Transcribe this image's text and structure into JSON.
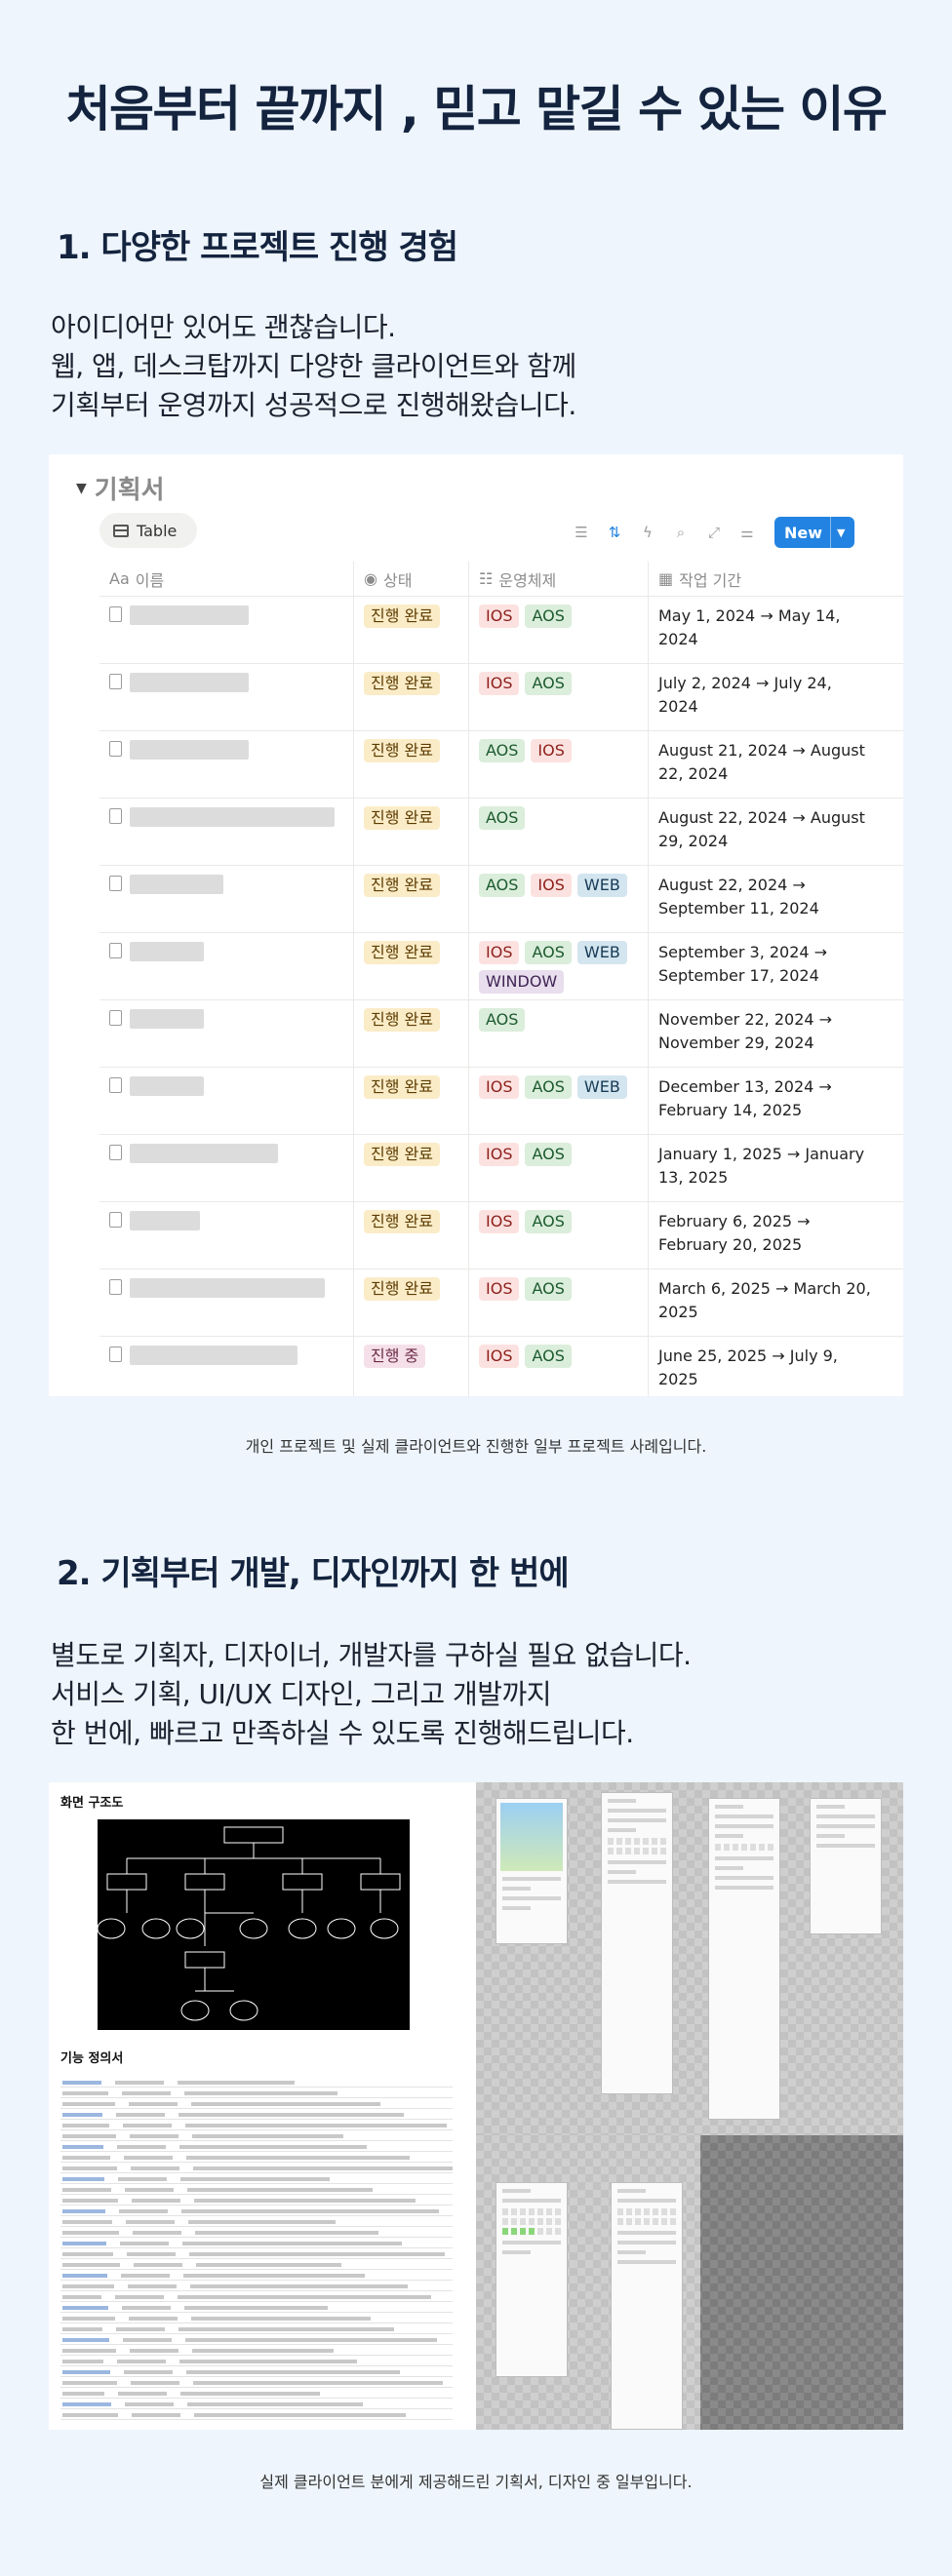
{
  "header": {
    "title": "처음부터 끝까지 , 믿고 맡길 수 있는 이유"
  },
  "section1": {
    "title": "1. 다양한 프로젝트 진행 경험",
    "desc": [
      "아이디어만 있어도 괜찮습니다.",
      "웹, 앱, 데스크탑까지 다양한 클라이언트와 함께",
      "기획부터 운영까지 성공적으로 진행해왔습니다."
    ],
    "caption": "개인 프로젝트 및 실제 클라이언트와 진행한 일부 프로젝트 사례입니다."
  },
  "database": {
    "title": "기획서",
    "view_label": "Table",
    "new_label": "New",
    "columns": {
      "name": "이름",
      "status": "상태",
      "platform": "운영체제",
      "period": "작업 기간"
    },
    "rows": [
      {
        "status": "진행 완료",
        "platforms": [
          "IOS",
          "AOS"
        ],
        "period": "May 1, 2024 → May 14, 2024"
      },
      {
        "status": "진행 완료",
        "platforms": [
          "IOS",
          "AOS"
        ],
        "period": "July 2, 2024 → July 24, 2024"
      },
      {
        "status": "진행 완료",
        "platforms": [
          "AOS",
          "IOS"
        ],
        "period": "August 21, 2024 → August 22, 2024"
      },
      {
        "status": "진행 완료",
        "platforms": [
          "AOS"
        ],
        "period": "August 22, 2024 → August 29, 2024"
      },
      {
        "status": "진행 완료",
        "platforms": [
          "AOS",
          "IOS",
          "WEB"
        ],
        "period": "August 22, 2024 → September 11, 2024"
      },
      {
        "status": "진행 완료",
        "platforms": [
          "IOS",
          "AOS",
          "WEB",
          "WINDOW"
        ],
        "period": "September 3, 2024 → September 17, 2024"
      },
      {
        "status": "진행 완료",
        "platforms": [
          "AOS"
        ],
        "period": "November 22, 2024 → November 29, 2024"
      },
      {
        "status": "진행 완료",
        "platforms": [
          "IOS",
          "AOS",
          "WEB"
        ],
        "period": "December 13, 2024 → February 14, 2025"
      },
      {
        "status": "진행 완료",
        "platforms": [
          "IOS",
          "AOS"
        ],
        "period": "January 1, 2025 → January 13, 2025"
      },
      {
        "status": "진행 완료",
        "platforms": [
          "IOS",
          "AOS"
        ],
        "period": "February 6, 2025 → February 20, 2025"
      },
      {
        "status": "진행 완료",
        "platforms": [
          "IOS",
          "AOS"
        ],
        "period": "March 6, 2025 → March 20, 2025"
      },
      {
        "status": "진행 중",
        "platforms": [
          "IOS",
          "AOS"
        ],
        "period": "June 25, 2025 → July 9, 2025"
      }
    ]
  },
  "section2": {
    "title": "2. 기획부터 개발, 디자인까지 한 번에",
    "desc": [
      "별도로 기획자, 디자이너, 개발자를 구하실 필요 없습니다.",
      "서비스 기획, UI/UX 디자인, 그리고 개발까지",
      "한 번에, 빠르고 만족하실 수 있도록 진행해드립니다."
    ],
    "spec_title": "화면 구조도",
    "spec_title2": "기능 정의서",
    "caption": "실제 클라이언트 분에게 제공해드린 기획서, 디자인 중 일부입니다."
  },
  "colors": {
    "accent": "#2383e2",
    "title": "#14243f",
    "background": "#eef5fc"
  }
}
